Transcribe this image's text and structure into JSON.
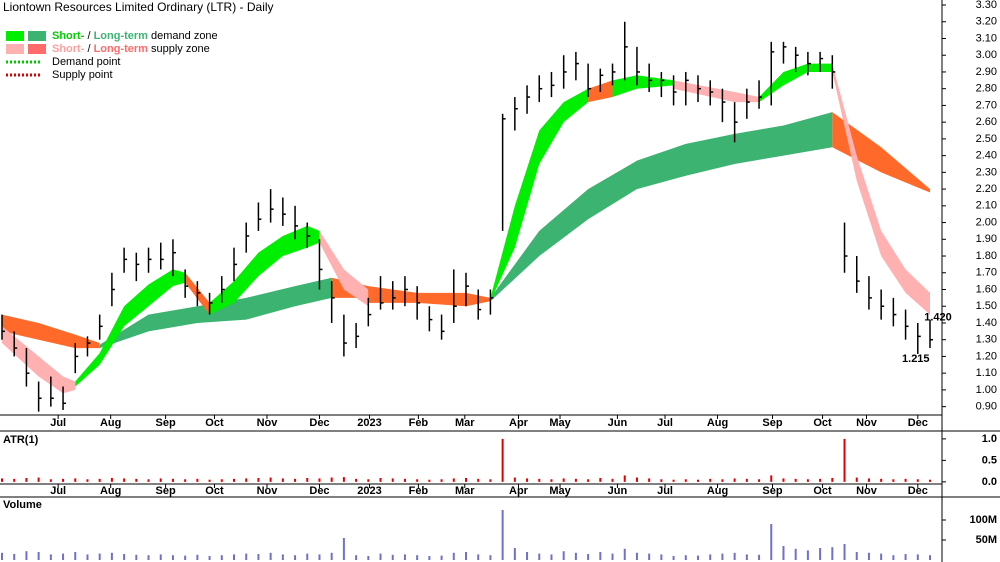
{
  "chart_data": {
    "type": "ohlc",
    "title": "Liontown Resources Limited Ordinary (LTR) - Daily",
    "x": [
      0,
      1,
      2,
      3,
      4,
      5,
      6,
      7,
      8,
      9,
      10,
      11,
      12,
      13,
      14,
      15,
      16,
      17,
      18,
      19,
      20,
      21,
      22,
      23,
      24,
      25,
      26,
      27,
      28,
      29,
      30,
      31,
      32,
      33,
      34,
      35,
      36,
      37,
      38,
      39,
      40,
      41,
      42,
      43,
      44,
      45,
      46,
      47,
      48,
      49,
      50,
      51,
      52,
      53,
      54,
      55,
      56,
      57,
      58,
      59,
      60,
      61,
      62,
      63,
      64,
      65,
      66,
      67,
      68,
      69,
      70,
      71,
      72,
      73,
      74,
      75,
      76
    ],
    "xlim": [
      0,
      76
    ],
    "xticks": [
      {
        "value": 4.6,
        "label": "Jul"
      },
      {
        "value": 8.9,
        "label": "Aug"
      },
      {
        "value": 13.4,
        "label": "Sep"
      },
      {
        "value": 17.4,
        "label": "Oct"
      },
      {
        "value": 21.7,
        "label": "Nov"
      },
      {
        "value": 26.0,
        "label": "Dec"
      },
      {
        "value": 30.1,
        "label": "2023"
      },
      {
        "value": 34.1,
        "label": "Feb"
      },
      {
        "value": 37.9,
        "label": "Mar"
      },
      {
        "value": 42.3,
        "label": "Apr"
      },
      {
        "value": 45.7,
        "label": "May"
      },
      {
        "value": 50.4,
        "label": "Jun"
      },
      {
        "value": 54.3,
        "label": "Jul"
      },
      {
        "value": 58.6,
        "label": "Aug"
      },
      {
        "value": 63.1,
        "label": "Sep"
      },
      {
        "value": 67.2,
        "label": "Oct"
      },
      {
        "value": 70.8,
        "label": "Nov"
      },
      {
        "value": 75.0,
        "label": "Dec"
      }
    ],
    "high": [
      1.45,
      1.35,
      1.25,
      1.05,
      1.08,
      1.02,
      1.28,
      1.32,
      1.45,
      1.7,
      1.85,
      1.82,
      1.85,
      1.88,
      1.9,
      1.72,
      1.65,
      1.58,
      1.68,
      1.85,
      2.0,
      2.12,
      2.2,
      2.15,
      2.1,
      2.0,
      1.9,
      1.65,
      1.45,
      1.4,
      1.55,
      1.68,
      1.65,
      1.68,
      1.62,
      1.5,
      1.45,
      1.72,
      1.7,
      1.6,
      1.6,
      2.65,
      2.75,
      2.82,
      2.88,
      2.9,
      3.0,
      3.02,
      2.95,
      2.92,
      2.95,
      3.2,
      3.05,
      2.95,
      2.9,
      2.88,
      2.9,
      2.88,
      2.85,
      2.8,
      2.72,
      2.8,
      2.85,
      3.08,
      3.08,
      3.05,
      3.02,
      3.02,
      3.0,
      2.0,
      1.8,
      1.68,
      1.6,
      1.55,
      1.48,
      1.4,
      1.42
    ],
    "low": [
      1.3,
      1.2,
      1.02,
      0.87,
      0.9,
      0.88,
      1.1,
      1.2,
      1.3,
      1.5,
      1.7,
      1.65,
      1.7,
      1.72,
      1.68,
      1.55,
      1.5,
      1.45,
      1.52,
      1.65,
      1.82,
      1.95,
      2.0,
      1.98,
      1.9,
      1.85,
      1.6,
      1.4,
      1.2,
      1.25,
      1.38,
      1.48,
      1.48,
      1.5,
      1.42,
      1.35,
      1.3,
      1.4,
      1.5,
      1.42,
      1.45,
      1.95,
      2.55,
      2.65,
      2.72,
      2.75,
      2.8,
      2.85,
      2.75,
      2.78,
      2.82,
      2.85,
      2.82,
      2.78,
      2.75,
      2.7,
      2.7,
      2.72,
      2.7,
      2.6,
      2.48,
      2.62,
      2.68,
      2.7,
      2.95,
      2.9,
      2.88,
      2.9,
      2.8,
      1.7,
      1.58,
      1.48,
      1.42,
      1.38,
      1.3,
      1.215,
      1.25
    ],
    "close": [
      1.35,
      1.25,
      1.1,
      0.95,
      0.95,
      0.92,
      1.2,
      1.28,
      1.38,
      1.6,
      1.78,
      1.75,
      1.78,
      1.78,
      1.82,
      1.62,
      1.58,
      1.52,
      1.6,
      1.75,
      1.92,
      2.02,
      2.08,
      2.05,
      1.98,
      1.92,
      1.72,
      1.55,
      1.28,
      1.32,
      1.45,
      1.52,
      1.55,
      1.6,
      1.52,
      1.42,
      1.35,
      1.5,
      1.62,
      1.48,
      1.55,
      2.62,
      2.68,
      2.75,
      2.8,
      2.82,
      2.9,
      2.95,
      2.8,
      2.88,
      2.9,
      3.05,
      2.9,
      2.85,
      2.85,
      2.78,
      2.85,
      2.8,
      2.78,
      2.72,
      2.6,
      2.72,
      2.75,
      3.02,
      3.05,
      3.0,
      2.95,
      2.98,
      2.9,
      1.8,
      1.65,
      1.55,
      1.5,
      1.45,
      1.38,
      1.32,
      1.3
    ],
    "bar_color": "#000000",
    "ylim": [
      0.85,
      3.33
    ],
    "yticks": [
      {
        "value": 0.9,
        "label": "0.90"
      },
      {
        "value": 1.0,
        "label": "1.00"
      },
      {
        "value": 1.1,
        "label": "1.10"
      },
      {
        "value": 1.2,
        "label": "1.20"
      },
      {
        "value": 1.3,
        "label": "1.30"
      },
      {
        "value": 1.4,
        "label": "1.40"
      },
      {
        "value": 1.5,
        "label": "1.50"
      },
      {
        "value": 1.6,
        "label": "1.60"
      },
      {
        "value": 1.7,
        "label": "1.70"
      },
      {
        "value": 1.8,
        "label": "1.80"
      },
      {
        "value": 1.9,
        "label": "1.90"
      },
      {
        "value": 2.0,
        "label": "2.00"
      },
      {
        "value": 2.1,
        "label": "2.10"
      },
      {
        "value": 2.2,
        "label": "2.20"
      },
      {
        "value": 2.3,
        "label": "2.30"
      },
      {
        "value": 2.4,
        "label": "2.40"
      },
      {
        "value": 2.5,
        "label": "2.50"
      },
      {
        "value": 2.6,
        "label": "2.60"
      },
      {
        "value": 2.7,
        "label": "2.70"
      },
      {
        "value": 2.8,
        "label": "2.80"
      },
      {
        "value": 2.9,
        "label": "2.90"
      },
      {
        "value": 3.0,
        "label": "3.00"
      },
      {
        "value": 3.1,
        "label": "3.10"
      },
      {
        "value": 3.2,
        "label": "3.20"
      },
      {
        "value": 3.3,
        "label": "3.30"
      }
    ],
    "zones": [
      {
        "color": "#ff6a2a",
        "x": [
          0,
          3,
          6,
          8
        ],
        "upper": [
          1.45,
          1.4,
          1.33,
          1.28
        ],
        "lower": [
          1.35,
          1.3,
          1.25,
          1.25
        ]
      },
      {
        "color": "#3cb371",
        "x": [
          8,
          12,
          16,
          20,
          24,
          27
        ],
        "upper": [
          1.27,
          1.45,
          1.5,
          1.55,
          1.62,
          1.67
        ],
        "lower": [
          1.25,
          1.35,
          1.4,
          1.42,
          1.5,
          1.55
        ]
      },
      {
        "color": "#ff6a2a",
        "x": [
          27,
          30,
          34,
          38,
          40
        ],
        "upper": [
          1.67,
          1.62,
          1.58,
          1.58,
          1.55
        ],
        "lower": [
          1.55,
          1.55,
          1.52,
          1.52,
          1.55
        ]
      },
      {
        "color": "#3cb371",
        "x": [
          40,
          44,
          48,
          52,
          56,
          60,
          64,
          68
        ],
        "upper": [
          1.55,
          1.95,
          2.2,
          2.37,
          2.47,
          2.53,
          2.58,
          2.66
        ],
        "lower": [
          1.53,
          1.8,
          2.02,
          2.2,
          2.28,
          2.35,
          2.4,
          2.45
        ]
      },
      {
        "color": "#ff6a2a",
        "x": [
          68,
          72,
          76
        ],
        "upper": [
          2.66,
          2.45,
          2.2
        ],
        "lower": [
          2.45,
          2.3,
          2.18
        ]
      },
      {
        "color": "#ffb0b0",
        "x": [
          0,
          3,
          5,
          6
        ],
        "upper": [
          1.38,
          1.2,
          1.08,
          1.05
        ],
        "lower": [
          1.28,
          1.08,
          0.98,
          1.0
        ]
      },
      {
        "color": "#00ee00",
        "x": [
          6,
          8,
          10,
          12,
          14,
          15
        ],
        "upper": [
          1.05,
          1.22,
          1.5,
          1.63,
          1.72,
          1.7
        ],
        "lower": [
          1.02,
          1.15,
          1.38,
          1.5,
          1.62,
          1.64
        ]
      },
      {
        "color": "#ff6a2a",
        "x": [
          15,
          17
        ],
        "upper": [
          1.7,
          1.52
        ],
        "lower": [
          1.64,
          1.45
        ]
      },
      {
        "color": "#00ee00",
        "x": [
          17,
          19,
          21,
          23,
          25,
          26
        ],
        "upper": [
          1.52,
          1.65,
          1.82,
          1.92,
          1.98,
          1.95
        ],
        "lower": [
          1.45,
          1.52,
          1.68,
          1.8,
          1.85,
          1.88
        ]
      },
      {
        "color": "#ffb0b0",
        "x": [
          26,
          28,
          30
        ],
        "upper": [
          1.95,
          1.72,
          1.6
        ],
        "lower": [
          1.88,
          1.6,
          1.5
        ]
      },
      {
        "color": "#ff6a2a",
        "x": [
          30,
          34,
          38,
          40
        ],
        "upper": [
          1.6,
          1.58,
          1.55,
          1.55
        ],
        "lower": [
          1.52,
          1.52,
          1.5,
          1.53
        ]
      },
      {
        "color": "#00ee00",
        "x": [
          40,
          42,
          44,
          46,
          48
        ],
        "upper": [
          1.55,
          2.1,
          2.55,
          2.72,
          2.8
        ],
        "lower": [
          1.53,
          1.85,
          2.35,
          2.6,
          2.72
        ]
      },
      {
        "color": "#ff6a2a",
        "x": [
          48,
          50
        ],
        "upper": [
          2.8,
          2.85
        ],
        "lower": [
          2.72,
          2.75
        ]
      },
      {
        "color": "#00ee00",
        "x": [
          50,
          52,
          55
        ],
        "upper": [
          2.85,
          2.88,
          2.85
        ],
        "lower": [
          2.75,
          2.8,
          2.82
        ]
      },
      {
        "color": "#ffb0b0",
        "x": [
          55,
          60,
          62
        ],
        "upper": [
          2.85,
          2.78,
          2.75
        ],
        "lower": [
          2.8,
          2.72,
          2.72
        ]
      },
      {
        "color": "#00ee00",
        "x": [
          62,
          64,
          66,
          68
        ],
        "upper": [
          2.75,
          2.9,
          2.95,
          2.95
        ],
        "lower": [
          2.72,
          2.82,
          2.9,
          2.9
        ]
      },
      {
        "color": "#ffb0b0",
        "x": [
          68,
          70,
          72,
          74,
          76
        ],
        "upper": [
          2.95,
          2.4,
          1.95,
          1.72,
          1.58
        ],
        "lower": [
          2.9,
          2.25,
          1.8,
          1.58,
          1.45
        ]
      }
    ],
    "legend": [
      {
        "swatches": [
          "#00ee00",
          "#3cb371"
        ],
        "parts": [
          {
            "text": "Short-",
            "color": "#00cc00"
          },
          {
            "text": " / "
          },
          {
            "text": "Long-term",
            "color": "#3cb371"
          },
          {
            "text": " demand zone"
          }
        ]
      },
      {
        "swatches": [
          "#ffb0b0",
          "#ff6a6a"
        ],
        "parts": [
          {
            "text": "Short-",
            "color": "#ffa0a0"
          },
          {
            "text": " / "
          },
          {
            "text": "Long-term",
            "color": "#ff6a6a"
          },
          {
            "text": " supply zone"
          }
        ]
      },
      {
        "line": "#00cc00",
        "parts": [
          {
            "text": "Demand point"
          }
        ]
      },
      {
        "line": "#dd0000",
        "parts": [
          {
            "text": "Supply point"
          }
        ]
      }
    ],
    "annotations": [
      {
        "text": "1.420",
        "x": 76,
        "value": 1.42
      },
      {
        "text": "1.215",
        "x": 75,
        "value": 1.215
      }
    ],
    "panels": [
      {
        "type": "bar",
        "label": "ATR(1)",
        "label_color": "#dd0000",
        "color": "#dd0000",
        "show_xticks": true,
        "values": [
          0.08,
          0.07,
          0.09,
          0.1,
          0.06,
          0.07,
          0.08,
          0.06,
          0.07,
          0.09,
          0.08,
          0.07,
          0.06,
          0.08,
          0.07,
          0.06,
          0.07,
          0.05,
          0.06,
          0.07,
          0.08,
          0.09,
          0.1,
          0.08,
          0.07,
          0.09,
          0.08,
          0.1,
          0.11,
          0.07,
          0.06,
          0.09,
          0.08,
          0.07,
          0.06,
          0.05,
          0.06,
          0.08,
          0.09,
          0.07,
          0.06,
          1.0,
          0.1,
          0.08,
          0.07,
          0.06,
          0.08,
          0.07,
          0.06,
          0.09,
          0.07,
          0.15,
          0.1,
          0.08,
          0.06,
          0.05,
          0.06,
          0.05,
          0.07,
          0.06,
          0.08,
          0.07,
          0.06,
          0.15,
          0.08,
          0.07,
          0.06,
          0.07,
          0.09,
          1.0,
          0.1,
          0.08,
          0.07,
          0.06,
          0.07,
          0.06,
          0.05
        ],
        "ylim": [
          -0.05,
          1.16
        ],
        "yticks": [
          {
            "value": 0,
            "label": "0.0"
          },
          {
            "value": 0.5,
            "label": "0.5"
          },
          {
            "value": 1,
            "label": "1.0"
          }
        ]
      },
      {
        "type": "bar",
        "label": "Volume",
        "label_color": "#6a2a9a",
        "color": "#7070c8",
        "show_xticks": false,
        "values": [
          18000000,
          15000000,
          22000000,
          20000000,
          14000000,
          16000000,
          20000000,
          14000000,
          16000000,
          18000000,
          15000000,
          13000000,
          12000000,
          14000000,
          12000000,
          11000000,
          13000000,
          10000000,
          12000000,
          14000000,
          16000000,
          15000000,
          18000000,
          14000000,
          12000000,
          16000000,
          14000000,
          18000000,
          55000000,
          12000000,
          10000000,
          16000000,
          13000000,
          14000000,
          12000000,
          10000000,
          11000000,
          18000000,
          20000000,
          14000000,
          12000000,
          125000000,
          30000000,
          20000000,
          16000000,
          14000000,
          22000000,
          18000000,
          15000000,
          20000000,
          16000000,
          28000000,
          18000000,
          16000000,
          14000000,
          10000000,
          12000000,
          11000000,
          14000000,
          16000000,
          18000000,
          14000000,
          13000000,
          90000000,
          35000000,
          28000000,
          24000000,
          30000000,
          32000000,
          40000000,
          20000000,
          18000000,
          16000000,
          12000000,
          15000000,
          14000000,
          12000000
        ],
        "ylim": [
          0,
          157500000
        ],
        "yticks": [
          {
            "value": 50000000,
            "label": "50M"
          },
          {
            "value": 100000000,
            "label": "100M"
          }
        ]
      }
    ]
  }
}
